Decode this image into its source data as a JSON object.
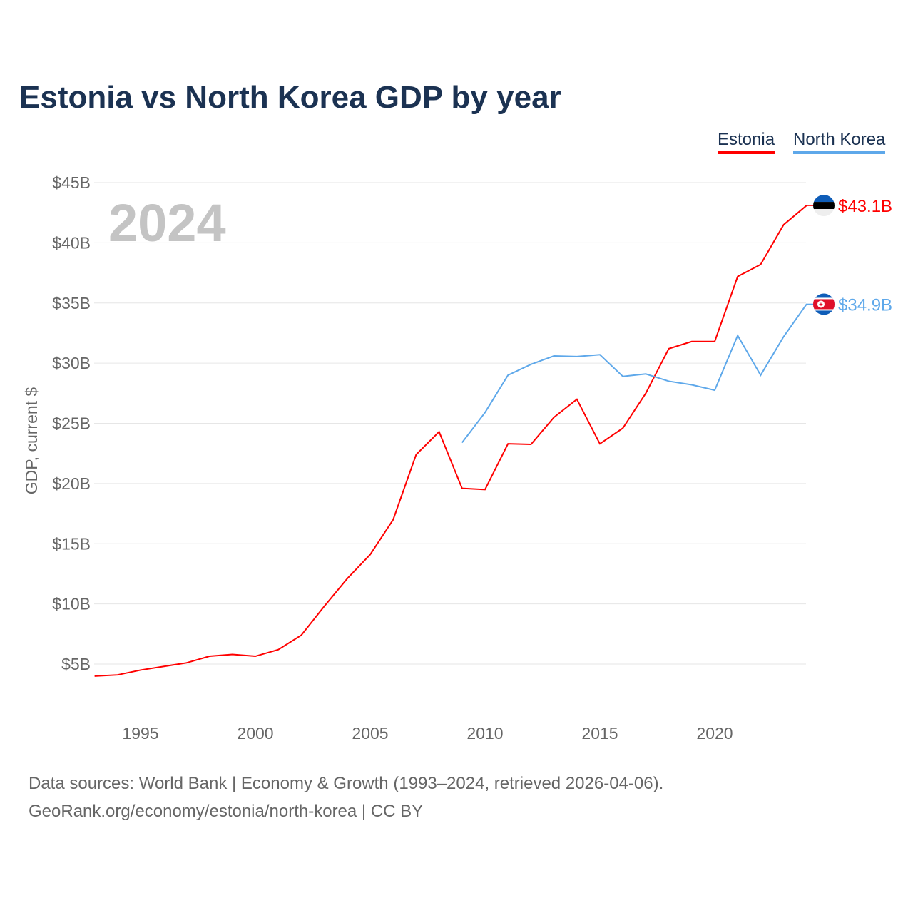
{
  "chart_data": {
    "type": "line",
    "title": "Estonia vs North Korea GDP by year",
    "ylabel": "GDP, current $",
    "xlabel": "",
    "ylim": [
      2.5,
      45
    ],
    "xlim": [
      1993,
      2024
    ],
    "yticks": [
      5,
      10,
      15,
      20,
      25,
      30,
      35,
      40,
      45
    ],
    "ytick_labels": [
      "$5B",
      "$10B",
      "$15B",
      "$20B",
      "$25B",
      "$30B",
      "$35B",
      "$40B",
      "$45B"
    ],
    "xticks": [
      1995,
      2000,
      2005,
      2010,
      2015,
      2020
    ],
    "xtick_labels": [
      "1995",
      "2000",
      "2005",
      "2010",
      "2015",
      "2020"
    ],
    "year_label": "2024",
    "legend": "top-right",
    "series": [
      {
        "name": "Estonia",
        "color": "#ff0000",
        "end_label": "$43.1B",
        "x": [
          1993,
          1994,
          1995,
          1996,
          1997,
          1998,
          1999,
          2000,
          2001,
          2002,
          2003,
          2004,
          2005,
          2006,
          2007,
          2008,
          2009,
          2010,
          2011,
          2012,
          2013,
          2014,
          2015,
          2016,
          2017,
          2018,
          2019,
          2020,
          2021,
          2022,
          2023,
          2024
        ],
        "values": [
          4.0,
          4.1,
          4.5,
          4.8,
          5.1,
          5.65,
          5.8,
          5.65,
          6.2,
          7.4,
          9.8,
          12.1,
          14.1,
          17.0,
          22.4,
          24.3,
          19.6,
          19.5,
          23.3,
          23.25,
          25.5,
          27.0,
          23.3,
          24.6,
          27.5,
          31.2,
          31.8,
          31.8,
          37.2,
          38.2,
          41.5,
          43.1
        ]
      },
      {
        "name": "North Korea",
        "color": "#5ea8ea",
        "end_label": "$34.9B",
        "x": [
          2009,
          2010,
          2011,
          2012,
          2013,
          2014,
          2015,
          2016,
          2017,
          2018,
          2019,
          2020,
          2021,
          2022,
          2023,
          2024
        ],
        "values": [
          23.4,
          25.9,
          29.0,
          29.9,
          30.6,
          30.55,
          30.7,
          28.9,
          29.1,
          28.5,
          28.2,
          27.75,
          32.3,
          29.0,
          32.2,
          34.9
        ]
      }
    ]
  },
  "footer": {
    "line1": "Data sources: World Bank | Economy & Growth (1993–2024, retrieved 2026-04-06).",
    "line2": "GeoRank.org/economy/estonia/north-korea | CC BY"
  }
}
